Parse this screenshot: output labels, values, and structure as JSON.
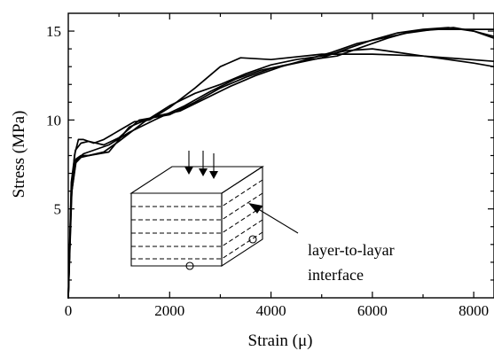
{
  "chart_data": {
    "type": "line",
    "xlabel": "Strain (μ)",
    "ylabel": "Stress (MPa)",
    "xlim": [
      0,
      8400
    ],
    "ylim": [
      0,
      16
    ],
    "x_ticks": [
      0,
      2000,
      4000,
      6000,
      8000
    ],
    "y_ticks": [
      5,
      10,
      15
    ],
    "grid": false,
    "series": [
      {
        "x": [
          0,
          60,
          120,
          200,
          300,
          500,
          700,
          1000,
          1300,
          1600,
          2000,
          2500,
          3000,
          3400,
          4000,
          5000,
          6000,
          7000,
          8400
        ],
        "y": [
          0,
          5.5,
          8.0,
          8.9,
          8.9,
          8.7,
          8.9,
          9.4,
          9.9,
          10.0,
          10.7,
          11.8,
          13.0,
          13.5,
          13.4,
          13.7,
          13.7,
          13.6,
          13.3
        ]
      },
      {
        "x": [
          0,
          70,
          150,
          250,
          400,
          700,
          1000,
          1500,
          2000,
          2500,
          3000,
          3500,
          4000,
          4500,
          5000,
          5500,
          6000,
          6500,
          7000,
          7500,
          8000,
          8400
        ],
        "y": [
          0,
          6.0,
          7.6,
          7.9,
          8.0,
          8.2,
          8.8,
          9.9,
          10.8,
          11.5,
          12.0,
          12.6,
          13.1,
          13.4,
          13.6,
          13.9,
          14.0,
          13.8,
          13.6,
          13.4,
          13.2,
          13.0
        ]
      },
      {
        "x": [
          0,
          60,
          140,
          250,
          400,
          700,
          1000,
          1400,
          2000,
          2500,
          3000,
          3500,
          4000,
          4500,
          5000,
          5500,
          6000,
          6500,
          7000,
          7500,
          8000,
          8400
        ],
        "y": [
          0,
          6.5,
          8.3,
          8.7,
          8.8,
          8.6,
          9.0,
          10.0,
          10.3,
          11.0,
          11.8,
          12.4,
          12.9,
          13.2,
          13.5,
          14.0,
          14.5,
          14.9,
          15.1,
          15.2,
          15.0,
          14.7
        ]
      },
      {
        "x": [
          0,
          60,
          150,
          250,
          400,
          800,
          1200,
          1700,
          2200,
          2700,
          3200,
          3700,
          4200,
          4700,
          5200,
          5700,
          6200,
          6700,
          7200,
          7600,
          8000,
          8400
        ],
        "y": [
          0,
          6.2,
          7.8,
          8.0,
          8.0,
          8.2,
          9.6,
          10.2,
          10.5,
          11.2,
          11.9,
          12.5,
          13.0,
          13.4,
          13.8,
          14.3,
          14.6,
          14.9,
          15.1,
          15.2,
          15.0,
          14.6
        ]
      },
      {
        "x": [
          0,
          60,
          150,
          300,
          500,
          800,
          1200,
          1700,
          2300,
          2800,
          3300,
          3800,
          4300,
          4800,
          5300,
          5800,
          6300,
          6800,
          7300,
          7800,
          8400
        ],
        "y": [
          0,
          5.8,
          7.7,
          8.1,
          8.3,
          8.6,
          9.3,
          10.0,
          10.8,
          11.6,
          12.3,
          12.8,
          13.1,
          13.4,
          13.6,
          14.1,
          14.6,
          15.0,
          15.1,
          15.1,
          15.1
        ]
      }
    ],
    "annotations": [
      "layer-to-layar",
      "interface"
    ]
  }
}
